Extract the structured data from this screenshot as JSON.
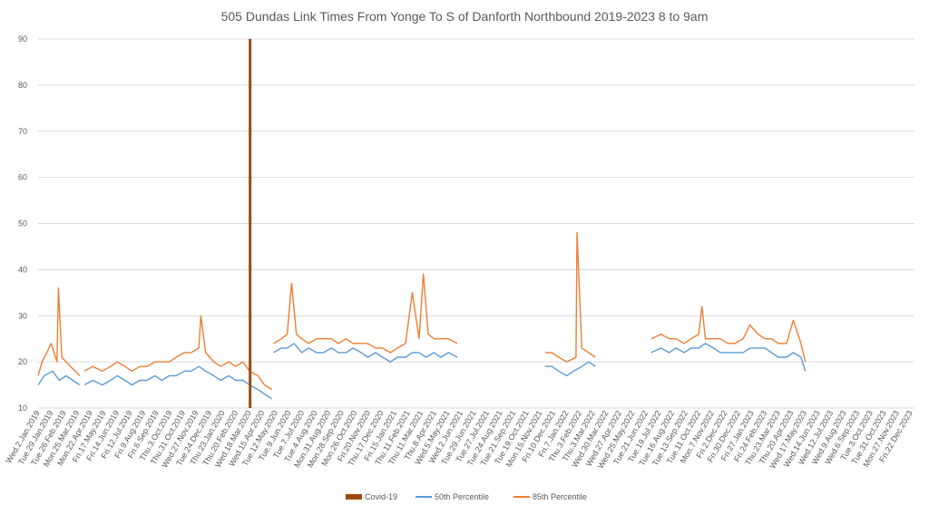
{
  "chart_data": {
    "type": "line",
    "title": "505 Dundas Link Times From Yonge To S of Danforth Northbound 2019-2023 8 to 9am",
    "xlabel": "",
    "ylabel": "",
    "ylim": [
      10,
      90
    ],
    "yticks": [
      10,
      20,
      30,
      40,
      50,
      60,
      70,
      80,
      90
    ],
    "grid": true,
    "legend_position": "bottom",
    "colors": {
      "covid": "#9c4a12",
      "p50": "#5b9bd5",
      "p85": "#ed7d31",
      "grid": "#d9d9d9",
      "text": "#595959"
    },
    "x_tick_labels": [
      "Wed.2.Jan.2019",
      "Tue.29.Jan.2019",
      "Tue.26.Feb.2019",
      "Mon.25.Mar.2019",
      "Mon.22.Apr.2019",
      "Fri.17.May.2019",
      "Fri.14.Jun.2019",
      "Fri.12.Jul.2019",
      "Fri.9.Aug.2019",
      "Fri.6.Sep.2019",
      "Thu.3.Oct.2019",
      "Thu.31.Oct.2019",
      "Wed.27.Nov.2019",
      "Tue.24.Dec.2019",
      "Thu.23.Jan.2020",
      "Thu.20.Feb.2020",
      "Wed.18.Mar.2020",
      "Wed.15.Apr.2020",
      "Tue.12.May.2020",
      "Tue.9.Jun.2020",
      "Tue.7.Jul.2020",
      "Tue.4.Aug.2020",
      "Mon.31.Aug.2020",
      "Mon.28.Sep.2020",
      "Mon.26.Oct.2020",
      "Fri.20.Nov.2020",
      "Thu.17.Dec.2020",
      "Fri.15.Jan.2021",
      "Thu.11.Feb.2021",
      "Thu.11.Mar.2021",
      "Thu.8.Apr.2021",
      "Wed.5.May.2021",
      "Wed.2.Jun.2021",
      "Tue.29.Jun.2021",
      "Tue.27.Jul.2021",
      "Tue.24.Aug.2021",
      "Tue.21.Sep.2021",
      "Tue.19.Oct.2021",
      "Mon.15.Nov.2021",
      "Fri.10.Dec.2021",
      "Fri.7.Jan.2022",
      "Thu.3.Feb.2022",
      "Thu.3.Mar.2022",
      "Wed.30.Mar.2022",
      "Wed.27.Apr.2022",
      "Wed.25.May.2022",
      "Tue.21.Jun.2022",
      "Tue.19.Jul.2022",
      "Tue.16.Aug.2022",
      "Tue.13.Sep.2022",
      "Tue.11.Oct.2022",
      "Mon.7.Nov.2022",
      "Fri.2.Dec.2022",
      "Fri.30.Dec.2022",
      "Fri.27.Jan.2023",
      "Fri.24.Feb.2023",
      "Thu.23.Mar.2023",
      "Thu.20.Apr.2023",
      "Wed.17.May.2023",
      "Wed.14.Jun.2023",
      "Wed.12.Jul.2023",
      "Wed.9.Aug.2023",
      "Wed.6.Sep.2023",
      "Tue.3.Oct.2023",
      "Tue.31.Oct.2023",
      "Mon.27.Nov.2023",
      "Fri.22.Dec.2023"
    ],
    "covid_marker_date": "Mon.16.Mar.2020",
    "covid_marker_value": 90,
    "series": [
      {
        "name": "50th Percentile",
        "segments": [
          {
            "x": [
              "2019-01-02",
              "2019-01-15",
              "2019-02-01",
              "2019-02-15",
              "2019-03-01",
              "2019-03-15",
              "2019-03-29"
            ],
            "y": [
              15,
              17,
              18,
              16,
              17,
              16,
              15
            ]
          },
          {
            "x": [
              "2019-04-08",
              "2019-04-25",
              "2019-05-15",
              "2019-06-01",
              "2019-06-15",
              "2019-07-01",
              "2019-07-15",
              "2019-08-01",
              "2019-08-15",
              "2019-09-01",
              "2019-09-15",
              "2019-10-01",
              "2019-10-15",
              "2019-11-01",
              "2019-11-15",
              "2019-12-01",
              "2019-12-15",
              "2020-01-01",
              "2020-01-15",
              "2020-02-01",
              "2020-02-15",
              "2020-03-01",
              "2020-03-15",
              "2020-04-01",
              "2020-04-15",
              "2020-04-30"
            ],
            "y": [
              15,
              16,
              15,
              16,
              17,
              16,
              15,
              16,
              16,
              17,
              16,
              17,
              17,
              18,
              18,
              19,
              18,
              17,
              16,
              17,
              16,
              16,
              15,
              14,
              13,
              12
            ]
          },
          {
            "x": [
              "2020-05-04",
              "2020-05-20",
              "2020-06-01",
              "2020-06-15",
              "2020-07-01",
              "2020-07-15",
              "2020-08-01",
              "2020-08-15",
              "2020-09-01",
              "2020-09-15",
              "2020-10-01",
              "2020-10-15",
              "2020-11-01",
              "2020-11-15",
              "2020-12-01",
              "2020-12-15",
              "2021-01-01",
              "2021-01-15",
              "2021-02-01",
              "2021-02-15",
              "2021-03-01",
              "2021-03-15",
              "2021-04-01",
              "2021-04-15",
              "2021-05-01",
              "2021-05-19"
            ],
            "y": [
              22,
              23,
              23,
              24,
              22,
              23,
              22,
              22,
              23,
              22,
              22,
              23,
              22,
              21,
              22,
              21,
              20,
              21,
              21,
              22,
              22,
              21,
              22,
              21,
              22,
              21
            ]
          },
          {
            "x": [
              "2021-11-17",
              "2021-12-01",
              "2021-12-15",
              "2022-01-01",
              "2022-01-15",
              "2022-02-01",
              "2022-02-15",
              "2022-03-01"
            ],
            "y": [
              19,
              19,
              18,
              17,
              18,
              19,
              20,
              19
            ]
          },
          {
            "x": [
              "2022-06-25",
              "2022-07-15",
              "2022-08-01",
              "2022-08-15",
              "2022-09-01",
              "2022-09-15",
              "2022-10-01",
              "2022-10-15",
              "2022-11-01",
              "2022-11-15",
              "2022-12-01",
              "2022-12-15",
              "2023-01-01",
              "2023-01-15",
              "2023-02-01",
              "2023-02-15",
              "2023-03-01",
              "2023-03-15",
              "2023-04-01",
              "2023-04-15",
              "2023-05-01",
              "2023-05-10"
            ],
            "y": [
              22,
              23,
              22,
              23,
              22,
              23,
              23,
              24,
              23,
              22,
              22,
              22,
              22,
              23,
              23,
              23,
              22,
              21,
              21,
              22,
              21,
              18
            ]
          }
        ]
      },
      {
        "name": "85th Percentile",
        "segments": [
          {
            "x": [
              "2019-01-02",
              "2019-01-10",
              "2019-01-20",
              "2019-01-29",
              "2019-02-10",
              "2019-02-13",
              "2019-02-20",
              "2019-03-01",
              "2019-03-10",
              "2019-03-20",
              "2019-03-29"
            ],
            "y": [
              17,
              20,
              22,
              24,
              20,
              36,
              21,
              20,
              19,
              18,
              17
            ]
          },
          {
            "x": [
              "2019-04-08",
              "2019-04-25",
              "2019-05-15",
              "2019-06-01",
              "2019-06-15",
              "2019-07-01",
              "2019-07-15",
              "2019-08-01",
              "2019-08-15",
              "2019-09-01",
              "2019-09-15",
              "2019-10-01",
              "2019-10-15",
              "2019-11-01",
              "2019-11-15",
              "2019-12-01",
              "2019-12-05",
              "2019-12-15",
              "2020-01-01",
              "2020-01-15",
              "2020-02-01",
              "2020-02-15",
              "2020-03-01",
              "2020-03-15",
              "2020-04-01",
              "2020-04-15",
              "2020-04-30"
            ],
            "y": [
              18,
              19,
              18,
              19,
              20,
              19,
              18,
              19,
              19,
              20,
              20,
              20,
              21,
              22,
              22,
              23,
              30,
              22,
              20,
              19,
              20,
              19,
              20,
              18,
              17,
              15,
              14
            ]
          },
          {
            "x": [
              "2020-05-04",
              "2020-05-20",
              "2020-06-01",
              "2020-06-10",
              "2020-06-20",
              "2020-07-01",
              "2020-07-15",
              "2020-08-01",
              "2020-08-15",
              "2020-09-01",
              "2020-09-15",
              "2020-10-01",
              "2020-10-15",
              "2020-11-01",
              "2020-11-15",
              "2020-12-01",
              "2020-12-15",
              "2021-01-01",
              "2021-01-15",
              "2021-02-01",
              "2021-02-15",
              "2021-03-01",
              "2021-03-10",
              "2021-03-20",
              "2021-04-01",
              "2021-04-15",
              "2021-05-01",
              "2021-05-19"
            ],
            "y": [
              24,
              25,
              26,
              37,
              26,
              25,
              24,
              25,
              25,
              25,
              24,
              25,
              24,
              24,
              24,
              23,
              23,
              22,
              23,
              24,
              35,
              25,
              39,
              26,
              25,
              25,
              25,
              24
            ]
          },
          {
            "x": [
              "2021-11-17",
              "2021-12-01",
              "2021-12-15",
              "2022-01-01",
              "2022-01-20",
              "2022-01-22",
              "2022-02-01",
              "2022-02-15",
              "2022-03-01"
            ],
            "y": [
              22,
              22,
              21,
              20,
              21,
              48,
              23,
              22,
              21
            ]
          },
          {
            "x": [
              "2022-06-25",
              "2022-07-15",
              "2022-08-01",
              "2022-08-15",
              "2022-09-01",
              "2022-09-15",
              "2022-10-01",
              "2022-10-08",
              "2022-10-15",
              "2022-11-01",
              "2022-11-15",
              "2022-12-01",
              "2022-12-15",
              "2023-01-01",
              "2023-01-15",
              "2023-02-01",
              "2023-02-15",
              "2023-03-01",
              "2023-03-15",
              "2023-04-01",
              "2023-04-15",
              "2023-05-01",
              "2023-05-10"
            ],
            "y": [
              25,
              26,
              25,
              25,
              24,
              25,
              26,
              32,
              25,
              25,
              25,
              24,
              24,
              25,
              28,
              26,
              25,
              25,
              24,
              24,
              29,
              24,
              20
            ]
          }
        ]
      }
    ],
    "legend": [
      {
        "key": "covid",
        "label": "Covid-19"
      },
      {
        "key": "p50",
        "label": "50th Percentile"
      },
      {
        "key": "p85",
        "label": "85th Percentile"
      }
    ]
  }
}
